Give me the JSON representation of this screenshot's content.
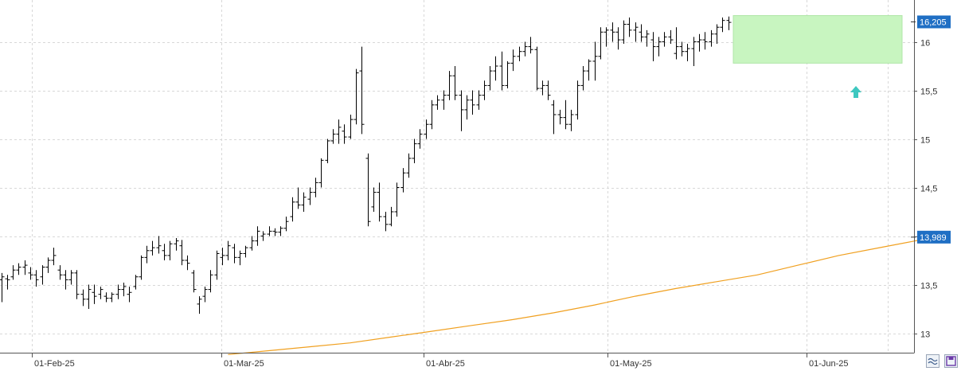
{
  "chart_data": {
    "type": "ohlc",
    "title": "",
    "xlabel": "",
    "ylabel": "",
    "ylim": [
      12.75,
      16.35
    ],
    "yticks": [
      13,
      13.5,
      14,
      14.5,
      15,
      15.5,
      16
    ],
    "ytick_labels": [
      "13",
      "13,5",
      "",
      "14,5",
      "15",
      "15,5",
      "16"
    ],
    "x_labels": [
      {
        "label": "01-Feb-25",
        "index": 6
      },
      {
        "label": "01-Mar-25",
        "index": 38
      },
      {
        "label": "01-Abr-25",
        "index": 75
      },
      {
        "label": "01-May-25",
        "index": 107
      },
      {
        "label": "01-Jun-25",
        "index": 143
      }
    ],
    "grid": true,
    "price_tag": {
      "value": 16.205,
      "label": "16,205",
      "color": "#1f6fc4"
    },
    "ma_tag": {
      "value": 13.989,
      "label": "13,989",
      "color": "#1f6fc4"
    },
    "series": [
      {
        "type": "ohlc",
        "color": "#000000",
        "bars": [
          [
            13.55,
            13.62,
            13.32,
            13.58
          ],
          [
            13.56,
            13.6,
            13.45,
            13.55
          ],
          [
            13.58,
            13.7,
            13.55,
            13.65
          ],
          [
            13.65,
            13.72,
            13.6,
            13.68
          ],
          [
            13.68,
            13.75,
            13.6,
            13.7
          ],
          [
            13.62,
            13.68,
            13.55,
            13.6
          ],
          [
            13.6,
            13.65,
            13.48,
            13.55
          ],
          [
            13.58,
            13.7,
            13.5,
            13.68
          ],
          [
            13.68,
            13.78,
            13.62,
            13.75
          ],
          [
            13.75,
            13.88,
            13.7,
            13.8
          ],
          [
            13.65,
            13.7,
            13.55,
            13.6
          ],
          [
            13.6,
            13.65,
            13.45,
            13.55
          ],
          [
            13.55,
            13.65,
            13.5,
            13.62
          ],
          [
            13.62,
            13.65,
            13.35,
            13.4
          ],
          [
            13.4,
            13.45,
            13.28,
            13.35
          ],
          [
            13.35,
            13.5,
            13.25,
            13.45
          ],
          [
            13.42,
            13.5,
            13.3,
            13.38
          ],
          [
            13.4,
            13.48,
            13.35,
            13.45
          ],
          [
            13.38,
            13.42,
            13.32,
            13.36
          ],
          [
            13.36,
            13.42,
            13.32,
            13.4
          ],
          [
            13.4,
            13.5,
            13.35,
            13.45
          ],
          [
            13.45,
            13.52,
            13.38,
            13.48
          ],
          [
            13.4,
            13.48,
            13.32,
            13.42
          ],
          [
            13.48,
            13.6,
            13.45,
            13.58
          ],
          [
            13.58,
            13.8,
            13.55,
            13.78
          ],
          [
            13.78,
            13.9,
            13.72,
            13.85
          ],
          [
            13.85,
            13.95,
            13.8,
            13.88
          ],
          [
            13.88,
            14.0,
            13.82,
            13.9
          ],
          [
            13.85,
            13.92,
            13.75,
            13.8
          ],
          [
            13.8,
            13.95,
            13.75,
            13.92
          ],
          [
            13.92,
            13.98,
            13.85,
            13.95
          ],
          [
            13.9,
            13.96,
            13.7,
            13.75
          ],
          [
            13.75,
            13.8,
            13.65,
            13.72
          ],
          [
            13.62,
            13.65,
            13.42,
            13.45
          ],
          [
            13.3,
            13.38,
            13.2,
            13.35
          ],
          [
            13.38,
            13.48,
            13.32,
            13.45
          ],
          [
            13.45,
            13.65,
            13.42,
            13.6
          ],
          [
            13.6,
            13.85,
            13.55,
            13.82
          ],
          [
            13.78,
            13.88,
            13.7,
            13.8
          ],
          [
            13.8,
            13.95,
            13.75,
            13.9
          ],
          [
            13.88,
            13.92,
            13.72,
            13.78
          ],
          [
            13.78,
            13.85,
            13.7,
            13.82
          ],
          [
            13.82,
            13.9,
            13.78,
            13.88
          ],
          [
            13.88,
            14.0,
            13.85,
            13.95
          ],
          [
            13.95,
            14.1,
            13.9,
            14.05
          ],
          [
            14.0,
            14.05,
            13.95,
            14.02
          ],
          [
            14.02,
            14.1,
            14.0,
            14.05
          ],
          [
            14.05,
            14.08,
            14.0,
            14.04
          ],
          [
            14.04,
            14.1,
            14.0,
            14.08
          ],
          [
            14.08,
            14.2,
            14.05,
            14.15
          ],
          [
            14.2,
            14.4,
            14.15,
            14.35
          ],
          [
            14.35,
            14.5,
            14.28,
            14.32
          ],
          [
            14.32,
            14.45,
            14.25,
            14.4
          ],
          [
            14.38,
            14.5,
            14.32,
            14.45
          ],
          [
            14.45,
            14.6,
            14.4,
            14.55
          ],
          [
            14.55,
            14.8,
            14.5,
            14.78
          ],
          [
            14.78,
            15.0,
            14.75,
            14.98
          ],
          [
            14.98,
            15.1,
            14.95,
            15.05
          ],
          [
            15.05,
            15.2,
            14.95,
            15.12
          ],
          [
            15.08,
            15.15,
            14.95,
            15.02
          ],
          [
            15.02,
            15.25,
            15.0,
            15.2
          ],
          [
            15.2,
            15.72,
            15.15,
            15.68
          ],
          [
            15.7,
            15.95,
            15.05,
            15.15
          ],
          [
            14.8,
            14.85,
            14.1,
            14.15
          ],
          [
            14.3,
            14.5,
            14.25,
            14.45
          ],
          [
            14.45,
            14.55,
            14.15,
            14.2
          ],
          [
            14.2,
            14.25,
            14.05,
            14.12
          ],
          [
            14.12,
            14.3,
            14.1,
            14.25
          ],
          [
            14.25,
            14.55,
            14.2,
            14.5
          ],
          [
            14.5,
            14.7,
            14.45,
            14.65
          ],
          [
            14.65,
            14.85,
            14.6,
            14.8
          ],
          [
            14.8,
            15.0,
            14.75,
            14.95
          ],
          [
            14.95,
            15.1,
            14.9,
            15.05
          ],
          [
            15.05,
            15.2,
            15.0,
            15.15
          ],
          [
            15.15,
            15.4,
            15.1,
            15.35
          ],
          [
            15.35,
            15.45,
            15.3,
            15.4
          ],
          [
            15.4,
            15.5,
            15.3,
            15.45
          ],
          [
            15.45,
            15.7,
            15.4,
            15.65
          ],
          [
            15.65,
            15.75,
            15.4,
            15.45
          ],
          [
            15.45,
            15.5,
            15.08,
            15.3
          ],
          [
            15.3,
            15.45,
            15.2,
            15.4
          ],
          [
            15.4,
            15.5,
            15.25,
            15.35
          ],
          [
            15.35,
            15.5,
            15.3,
            15.45
          ],
          [
            15.45,
            15.6,
            15.4,
            15.55
          ],
          [
            15.55,
            15.75,
            15.5,
            15.7
          ],
          [
            15.7,
            15.85,
            15.6,
            15.75
          ],
          [
            15.75,
            15.9,
            15.5,
            15.55
          ],
          [
            15.55,
            15.8,
            15.52,
            15.78
          ],
          [
            15.78,
            15.92,
            15.7,
            15.85
          ],
          [
            15.85,
            15.95,
            15.8,
            15.9
          ],
          [
            15.9,
            16.0,
            15.85,
            15.95
          ],
          [
            15.95,
            16.05,
            15.88,
            15.92
          ],
          [
            15.92,
            15.95,
            15.5,
            15.52
          ],
          [
            15.52,
            15.6,
            15.45,
            15.55
          ],
          [
            15.55,
            15.6,
            15.4,
            15.45
          ],
          [
            15.35,
            15.4,
            15.05,
            15.25
          ],
          [
            15.25,
            15.3,
            15.15,
            15.22
          ],
          [
            15.22,
            15.4,
            15.1,
            15.15
          ],
          [
            15.15,
            15.3,
            15.08,
            15.25
          ],
          [
            15.25,
            15.6,
            15.2,
            15.55
          ],
          [
            15.55,
            15.75,
            15.5,
            15.7
          ],
          [
            15.7,
            15.82,
            15.6,
            15.8
          ],
          [
            15.8,
            16.0,
            15.6,
            15.85
          ],
          [
            15.85,
            16.15,
            15.82,
            16.1
          ],
          [
            16.1,
            16.15,
            15.95,
            16.12
          ],
          [
            16.12,
            16.2,
            16.0,
            16.1
          ],
          [
            16.1,
            16.15,
            15.92,
            16.02
          ],
          [
            16.02,
            16.22,
            15.98,
            16.18
          ],
          [
            16.18,
            16.25,
            16.05,
            16.12
          ],
          [
            16.12,
            16.2,
            16.0,
            16.15
          ],
          [
            16.1,
            16.18,
            16.0,
            16.05
          ],
          [
            16.05,
            16.12,
            15.95,
            16.08
          ],
          [
            16.02,
            16.1,
            15.8,
            15.95
          ],
          [
            15.95,
            16.05,
            15.85,
            16.0
          ],
          [
            16.0,
            16.1,
            15.95,
            16.05
          ],
          [
            16.05,
            16.12,
            15.98,
            16.02
          ],
          [
            15.88,
            16.15,
            15.82,
            15.95
          ],
          [
            15.95,
            16.0,
            15.85,
            15.9
          ],
          [
            15.9,
            15.98,
            15.8,
            15.93
          ],
          [
            15.93,
            16.05,
            15.75,
            16.0
          ],
          [
            16.0,
            16.08,
            15.9,
            16.02
          ],
          [
            16.02,
            16.1,
            15.92,
            16.0
          ],
          [
            16.0,
            16.12,
            15.95,
            16.08
          ],
          [
            16.08,
            16.18,
            15.98,
            16.15
          ],
          [
            16.15,
            16.25,
            16.1,
            16.22
          ],
          [
            16.22,
            16.26,
            16.12,
            16.2
          ]
        ]
      },
      {
        "type": "line",
        "color": "#f0a020",
        "points": [
          [
            39,
            12.78
          ],
          [
            46,
            12.82
          ],
          [
            53,
            12.86
          ],
          [
            60,
            12.9
          ],
          [
            67,
            12.96
          ],
          [
            74,
            13.02
          ],
          [
            81,
            13.08
          ],
          [
            88,
            13.14
          ],
          [
            95,
            13.21
          ],
          [
            102,
            13.29
          ],
          [
            109,
            13.38
          ],
          [
            116,
            13.46
          ],
          [
            123,
            13.53
          ],
          [
            130,
            13.6
          ],
          [
            137,
            13.7
          ],
          [
            144,
            13.8
          ],
          [
            151,
            13.88
          ],
          [
            158,
            13.96
          ],
          [
            160,
            13.99
          ]
        ]
      }
    ],
    "highlight_box": {
      "x_from": 128,
      "x_to": 160,
      "y_from": 15.78,
      "y_to": 16.27,
      "color": "#c8f5c0"
    },
    "signal_arrow": {
      "index": 148.5,
      "value": 15.48,
      "color": "#3ec8c0"
    }
  }
}
